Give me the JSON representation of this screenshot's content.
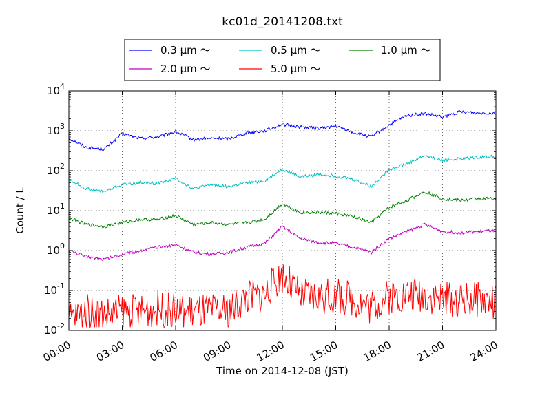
{
  "chart_data": {
    "type": "line",
    "title": "kc01d_20141208.txt",
    "xlabel": "Time on 2014-12-08 (JST)",
    "ylabel": "Count / L",
    "yscale": "log",
    "xlim": [
      "00:00",
      "24:00"
    ],
    "ylim": [
      0.01,
      10000
    ],
    "grid": true,
    "legend_position": "top-center (outside plot)",
    "x_ticks": [
      "00:00",
      "03:00",
      "06:00",
      "09:00",
      "12:00",
      "15:00",
      "18:00",
      "21:00",
      "24:00"
    ],
    "y_ticks": [
      {
        "base": "10",
        "exp": "-2",
        "value": 0.01
      },
      {
        "base": "10",
        "exp": "-1",
        "value": 0.1
      },
      {
        "base": "10",
        "exp": "0",
        "value": 1
      },
      {
        "base": "10",
        "exp": "1",
        "value": 10
      },
      {
        "base": "10",
        "exp": "2",
        "value": 100
      },
      {
        "base": "10",
        "exp": "3",
        "value": 1000
      },
      {
        "base": "10",
        "exp": "4",
        "value": 10000
      }
    ],
    "x_hours": [
      0,
      1,
      2,
      3,
      4,
      5,
      6,
      7,
      8,
      9,
      10,
      11,
      12,
      13,
      14,
      15,
      16,
      17,
      18,
      19,
      20,
      21,
      22,
      23,
      24
    ],
    "series": [
      {
        "name": "0.3 μm ～",
        "color": "#0000ff",
        "values": [
          650,
          380,
          350,
          850,
          650,
          700,
          950,
          600,
          650,
          630,
          900,
          1000,
          1450,
          1250,
          1150,
          1300,
          900,
          700,
          1400,
          2400,
          2700,
          2200,
          3000,
          2800,
          2800
        ]
      },
      {
        "name": "0.5 μm ～",
        "color": "#00bfbf",
        "values": [
          60,
          35,
          30,
          45,
          50,
          48,
          65,
          35,
          45,
          40,
          50,
          55,
          110,
          70,
          80,
          75,
          60,
          40,
          110,
          150,
          240,
          180,
          200,
          220,
          230
        ]
      },
      {
        "name": "1.0 μm ～",
        "color": "#008000",
        "values": [
          6.5,
          4.5,
          4,
          5,
          6,
          6,
          7.5,
          4.5,
          5,
          4.5,
          5,
          6,
          15,
          9,
          9,
          8.5,
          7,
          5,
          12,
          18,
          30,
          20,
          18,
          20,
          20
        ]
      },
      {
        "name": "2.0 μm ～",
        "color": "#bf00bf",
        "values": [
          1.0,
          0.7,
          0.6,
          0.8,
          1.0,
          1.2,
          1.4,
          0.9,
          0.8,
          0.9,
          1.2,
          1.5,
          4.0,
          2.0,
          1.6,
          1.5,
          1.2,
          0.9,
          2.0,
          3.0,
          4.5,
          3.0,
          2.8,
          3.0,
          3.2
        ]
      },
      {
        "name": "5.0 μm ～",
        "color": "#ff0000",
        "values": [
          0.02,
          0.03,
          0.025,
          0.03,
          0.03,
          0.035,
          0.03,
          0.03,
          0.03,
          0.03,
          0.07,
          0.08,
          0.25,
          0.07,
          0.07,
          0.07,
          0.06,
          0.04,
          0.07,
          0.08,
          0.08,
          0.06,
          0.06,
          0.06,
          0.05
        ],
        "noisy": true
      }
    ]
  }
}
